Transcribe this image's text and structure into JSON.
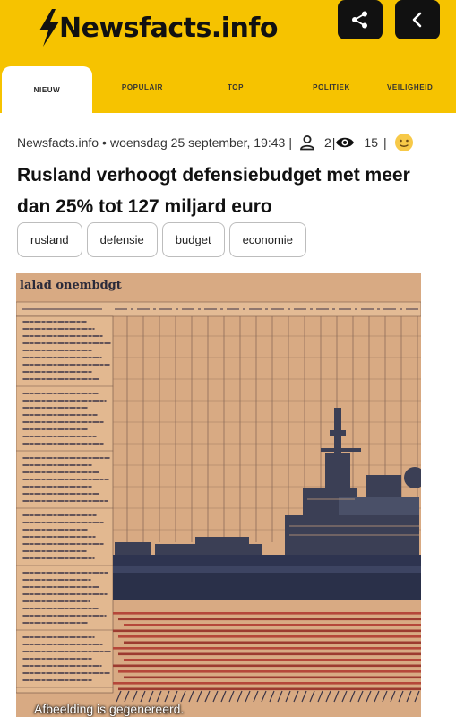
{
  "header": {
    "logo_text": "Newsfacts.info",
    "share_icon": "share-icon",
    "back_icon": "chevron-left-icon",
    "accent_color": "#f6c300"
  },
  "tabs": [
    {
      "label": "NIEUW",
      "active": true
    },
    {
      "label": "POPULAIR",
      "active": false
    },
    {
      "label": "TOP",
      "active": false
    },
    {
      "label": "POLITIEK",
      "active": false
    },
    {
      "label": "VEILIGHEID",
      "active": false
    }
  ],
  "article": {
    "source": "Newsfacts.info",
    "date": "woensdag 25 september, 19:43",
    "separator": "|",
    "readers": "2",
    "views": "15",
    "headline": "Rusland verhoogt defensiebudget met meer dan 25% tot 127 miljard euro",
    "tags": [
      "rusland",
      "defensie",
      "budget",
      "economie"
    ]
  },
  "image": {
    "title_text": "lalad onembdgt",
    "caption": "Afbeelding is gegenereerd."
  }
}
